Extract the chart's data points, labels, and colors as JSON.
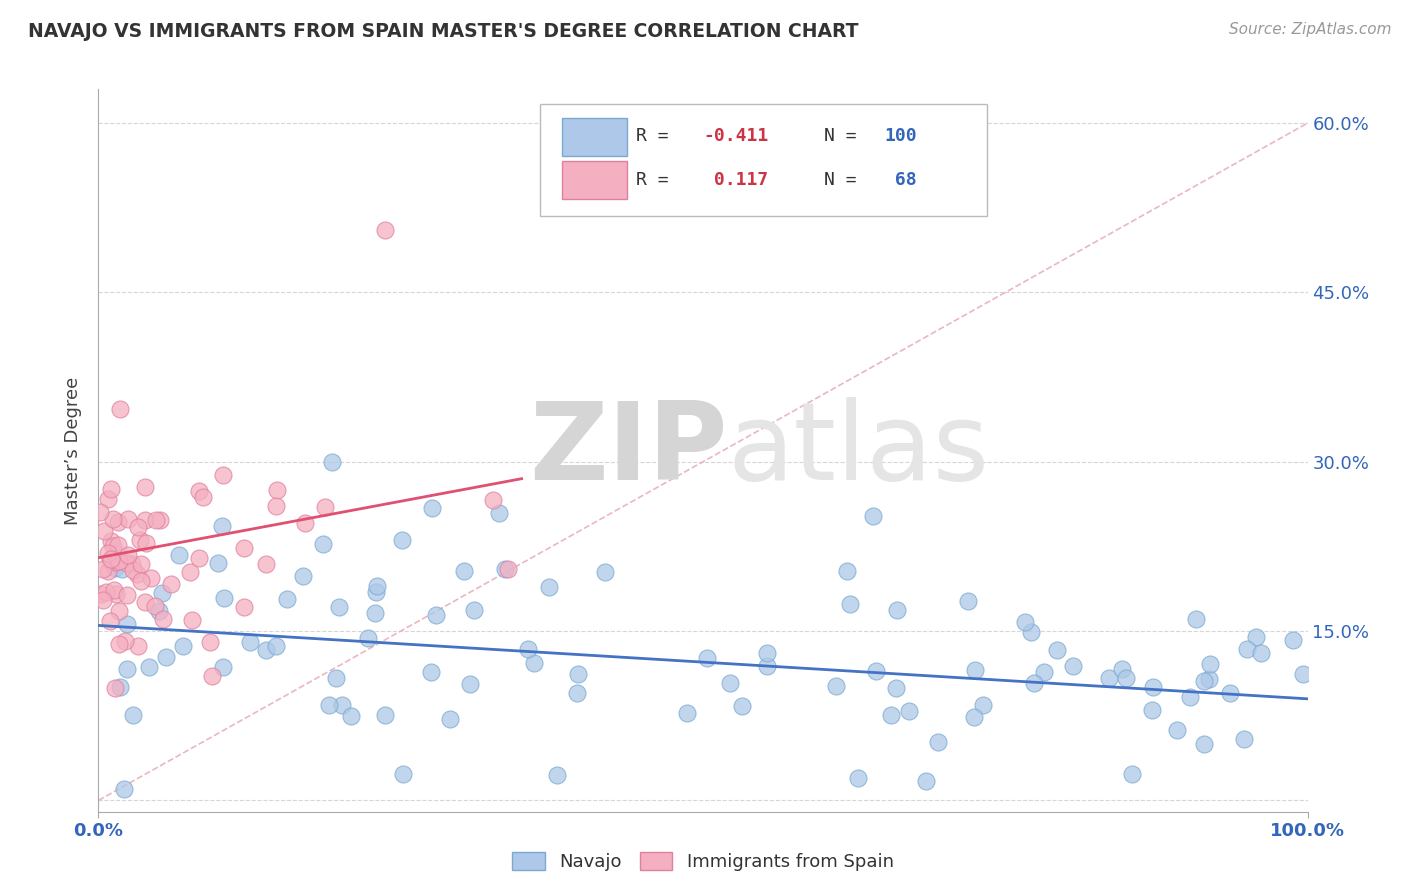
{
  "title": "NAVAJO VS IMMIGRANTS FROM SPAIN MASTER'S DEGREE CORRELATION CHART",
  "source_text": "Source: ZipAtlas.com",
  "ylabel": "Master’s Degree",
  "xlim": [
    0,
    1.0
  ],
  "ylim": [
    -0.01,
    0.63
  ],
  "xticks": [
    0.0,
    1.0
  ],
  "xtick_labels": [
    "0.0%",
    "100.0%"
  ],
  "yticks": [
    0.0,
    0.15,
    0.3,
    0.45,
    0.6
  ],
  "ytick_labels": [
    "",
    "15.0%",
    "30.0%",
    "45.0%",
    "60.0%"
  ],
  "navajo_color": "#adc8e8",
  "navajo_edge": "#7aaad0",
  "spain_color": "#f4afc0",
  "spain_edge": "#e080a0",
  "navajo_R": -0.411,
  "navajo_N": 100,
  "spain_R": 0.117,
  "spain_N": 68,
  "legend_R_color": "#cc3344",
  "legend_N_color": "#3366bb",
  "trend_navajo_color": "#4472c4",
  "trend_spain_color": "#e05070",
  "diag_color": "#e8b0b8",
  "background_color": "#ffffff",
  "grid_color": "#cccccc",
  "watermark_zip": "ZIP",
  "watermark_atlas": "atlas",
  "watermark_color": "#d8d8d8"
}
